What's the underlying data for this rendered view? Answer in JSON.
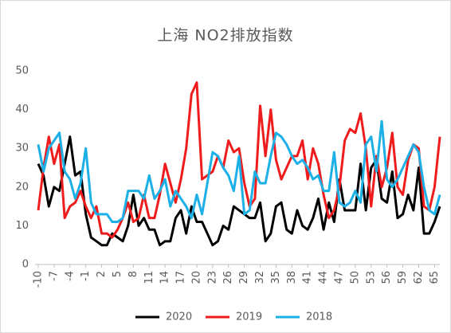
{
  "chart_data": {
    "type": "line",
    "title": "上海 NO2排放指数",
    "x": [
      -10,
      -9,
      -8,
      -7,
      -6,
      -5,
      -4,
      -3,
      -2,
      -1,
      0,
      1,
      2,
      3,
      4,
      5,
      6,
      7,
      8,
      9,
      10,
      11,
      12,
      13,
      14,
      15,
      16,
      17,
      18,
      19,
      20,
      21,
      22,
      23,
      24,
      25,
      26,
      27,
      28,
      29,
      30,
      31,
      32,
      33,
      34,
      35,
      36,
      37,
      38,
      39,
      40,
      41,
      42,
      43,
      44,
      45,
      46,
      47,
      48,
      49,
      50,
      51,
      52,
      53,
      54,
      55,
      56,
      57,
      58,
      59,
      60,
      61,
      62,
      63,
      64,
      65,
      66
    ],
    "series": [
      {
        "name": "2020",
        "color": "#000000",
        "values": [
          26,
          23,
          15,
          20,
          19,
          26,
          33,
          23,
          24,
          13,
          7,
          6,
          5,
          5,
          8,
          7,
          6,
          10,
          18,
          10,
          12,
          9,
          9,
          5,
          6,
          6,
          12,
          14,
          8,
          15,
          11,
          11,
          8,
          5,
          6,
          10,
          9,
          15,
          14,
          13,
          12,
          12,
          16,
          6,
          8,
          15,
          16,
          9,
          8,
          14,
          10,
          9,
          12,
          17,
          9,
          16,
          11,
          22,
          14,
          14,
          14,
          26,
          14,
          25,
          27,
          17,
          16,
          24,
          12,
          13,
          18,
          14,
          25,
          8,
          8,
          11,
          15
        ]
      },
      {
        "name": "2019",
        "color": "#ee1c1c",
        "values": [
          14,
          25,
          33,
          26,
          31,
          12,
          15,
          16,
          19,
          15,
          12,
          15,
          8,
          8,
          7,
          9,
          12,
          16,
          11,
          12,
          18,
          12,
          12,
          18,
          26,
          21,
          16,
          22,
          30,
          44,
          47,
          22,
          23,
          24,
          28,
          25,
          32,
          29,
          30,
          21,
          15,
          17,
          41,
          28,
          40,
          27,
          22,
          25,
          28,
          28,
          32,
          22,
          30,
          26,
          18,
          12,
          14,
          20,
          32,
          35,
          34,
          39,
          30,
          15,
          28,
          20,
          25,
          34,
          20,
          18,
          27,
          31,
          30,
          15,
          14,
          20,
          33
        ]
      },
      {
        "name": "2018",
        "color": "#1cb0e6",
        "values": [
          31,
          24,
          30,
          32,
          34,
          24,
          22,
          17,
          21,
          30,
          16,
          13,
          13,
          13,
          11,
          11,
          12,
          19,
          19,
          19,
          17,
          23,
          17,
          19,
          22,
          15,
          19,
          17,
          15,
          12,
          18,
          13,
          21,
          29,
          28,
          25,
          23,
          19,
          28,
          13,
          14,
          24,
          21,
          21,
          28,
          34,
          33,
          31,
          28,
          26,
          27,
          25,
          22,
          23,
          19,
          19,
          29,
          16,
          15,
          16,
          19,
          16,
          31,
          33,
          24,
          37,
          22,
          20,
          22,
          25,
          28,
          31,
          29,
          20,
          14,
          13,
          18
        ]
      }
    ],
    "xlim": [
      -10,
      66
    ],
    "xticks": [
      -10,
      -7,
      -4,
      -1,
      2,
      5,
      8,
      11,
      14,
      17,
      20,
      23,
      26,
      29,
      32,
      35,
      38,
      41,
      44,
      47,
      50,
      53,
      56,
      59,
      62,
      65
    ],
    "ylim": [
      0,
      50
    ],
    "yticks": [
      0,
      10,
      20,
      30,
      40,
      50
    ],
    "grid": false
  }
}
